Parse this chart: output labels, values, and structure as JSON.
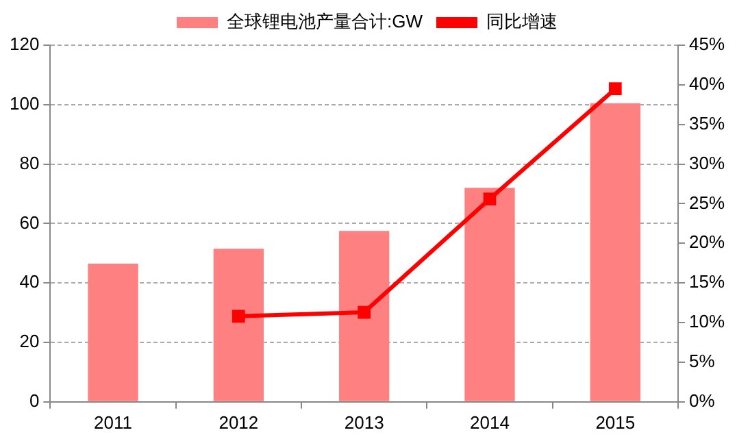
{
  "chart_data": {
    "type": "bar",
    "categories": [
      "2011",
      "2012",
      "2013",
      "2014",
      "2015"
    ],
    "series": [
      {
        "name": "全球锂电池产量合计:GW",
        "color": "#ff8080",
        "values": [
          46.5,
          51.5,
          57.5,
          72,
          100.5
        ]
      },
      {
        "name": "同比增速",
        "type": "line",
        "axis": "y2",
        "color": "#ff0000",
        "values": [
          null,
          10.8,
          11.3,
          25.6,
          39.5
        ]
      }
    ],
    "ylim": [
      0,
      120
    ],
    "yticks": [
      0,
      20,
      40,
      60,
      80,
      100,
      120
    ],
    "y2lim": [
      0,
      45
    ],
    "y2ticks": [
      {
        "value": 0,
        "label": "0%"
      },
      {
        "value": 5,
        "label": "5%"
      },
      {
        "value": 10,
        "label": "10%"
      },
      {
        "value": 15,
        "label": "15%"
      },
      {
        "value": 20,
        "label": "20%"
      },
      {
        "value": 25,
        "label": "25%"
      },
      {
        "value": 30,
        "label": "30%"
      },
      {
        "value": 35,
        "label": "35%"
      },
      {
        "value": 40,
        "label": "40%"
      },
      {
        "value": 45,
        "label": "45%"
      }
    ],
    "grid": "y",
    "legend": "top",
    "marker": "square",
    "line_style": "solid"
  }
}
